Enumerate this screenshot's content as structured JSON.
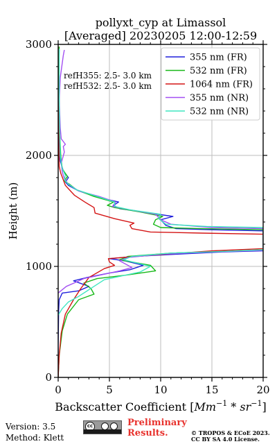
{
  "chart_data": {
    "type": "line",
    "orientation": "vertical-profile",
    "title_line1": "pollyxt_cyp at Limassol",
    "title_line2": "[Averaged] 20230205 12:00-12:59",
    "xlabel": "Backscatter Coefficient [",
    "xlabel_unit_base": "Mm",
    "xlabel_unit_sup1": "−1",
    "xlabel_unit_mid": " * ",
    "xlabel_unit_base2": "sr",
    "xlabel_unit_sup2": "−1",
    "xlabel_close": "]",
    "ylabel": "Height (m)",
    "xlim": [
      0,
      20
    ],
    "ylim": [
      0,
      3000
    ],
    "x_ticks": [
      "0",
      "5",
      "10",
      "15",
      "20"
    ],
    "y_ticks": [
      "0",
      "1000",
      "2000",
      "3000"
    ],
    "grid": true,
    "legend_position": "top-right",
    "annotations": [
      "refH355:  2.5- 3.0 km",
      "refH532:  2.5- 3.0 km"
    ],
    "series": [
      {
        "name": "355 nm (FR)",
        "color": "#1f1fdc",
        "points": [
          [
            0,
            0
          ],
          [
            0,
            300
          ],
          [
            0.05,
            600
          ],
          [
            0.1,
            700
          ],
          [
            0.4,
            760
          ],
          [
            2.0,
            780
          ],
          [
            3.0,
            820
          ],
          [
            1.5,
            870
          ],
          [
            2.8,
            900
          ],
          [
            5.0,
            940
          ],
          [
            7.0,
            970
          ],
          [
            8.3,
            1010
          ],
          [
            6.5,
            1050
          ],
          [
            5.0,
            1070
          ],
          [
            7.5,
            1090
          ],
          [
            11.5,
            1110
          ],
          [
            16.0,
            1130
          ],
          [
            20,
            1140
          ],
          [
            20,
            1320
          ],
          [
            15.0,
            1330
          ],
          [
            11.5,
            1340
          ],
          [
            10.5,
            1370
          ],
          [
            10.0,
            1420
          ],
          [
            11.2,
            1450
          ],
          [
            9.0,
            1480
          ],
          [
            6.0,
            1520
          ],
          [
            5.4,
            1550
          ],
          [
            5.9,
            1580
          ],
          [
            4.0,
            1620
          ],
          [
            2.0,
            1680
          ],
          [
            1.0,
            1730
          ],
          [
            0.7,
            1760
          ],
          [
            1.0,
            1800
          ],
          [
            0.5,
            1860
          ],
          [
            0.2,
            1950
          ],
          [
            0.15,
            2100
          ],
          [
            0.1,
            2400
          ],
          [
            0.05,
            2700
          ],
          [
            0.1,
            2950
          ]
        ]
      },
      {
        "name": "532 nm (FR)",
        "color": "#17b817",
        "points": [
          [
            0,
            0
          ],
          [
            0.1,
            200
          ],
          [
            0.4,
            420
          ],
          [
            0.9,
            570
          ],
          [
            2.0,
            700
          ],
          [
            3.5,
            750
          ],
          [
            3.2,
            800
          ],
          [
            2.5,
            850
          ],
          [
            3.8,
            890
          ],
          [
            6.5,
            920
          ],
          [
            9.5,
            960
          ],
          [
            9.0,
            1010
          ],
          [
            6.0,
            1060
          ],
          [
            6.8,
            1090
          ],
          [
            11.0,
            1120
          ],
          [
            16.0,
            1135
          ],
          [
            20,
            1150
          ],
          [
            20,
            1330
          ],
          [
            14.0,
            1340
          ],
          [
            10.0,
            1350
          ],
          [
            9.3,
            1380
          ],
          [
            9.5,
            1420
          ],
          [
            10.2,
            1450
          ],
          [
            8.0,
            1490
          ],
          [
            5.5,
            1530
          ],
          [
            4.8,
            1550
          ],
          [
            5.4,
            1580
          ],
          [
            3.5,
            1630
          ],
          [
            1.8,
            1690
          ],
          [
            1.1,
            1740
          ],
          [
            0.6,
            1770
          ],
          [
            0.9,
            1810
          ],
          [
            0.4,
            1880
          ],
          [
            0.25,
            2000
          ],
          [
            0.15,
            2200
          ],
          [
            0.1,
            2500
          ],
          [
            0.05,
            2800
          ],
          [
            0.1,
            2980
          ]
        ]
      },
      {
        "name": "1064 nm (FR)",
        "color": "#d41414",
        "points": [
          [
            0,
            0
          ],
          [
            0.1,
            200
          ],
          [
            0.3,
            400
          ],
          [
            0.7,
            570
          ],
          [
            1.5,
            700
          ],
          [
            2.2,
            800
          ],
          [
            3.0,
            900
          ],
          [
            4.5,
            980
          ],
          [
            5.5,
            1010
          ],
          [
            5.0,
            1040
          ],
          [
            4.9,
            1070
          ],
          [
            9.0,
            1100
          ],
          [
            15.0,
            1140
          ],
          [
            20,
            1160
          ],
          [
            20,
            1290
          ],
          [
            14.0,
            1300
          ],
          [
            9.0,
            1310
          ],
          [
            7.2,
            1340
          ],
          [
            7.0,
            1370
          ],
          [
            7.4,
            1390
          ],
          [
            5.5,
            1430
          ],
          [
            3.6,
            1480
          ],
          [
            3.5,
            1530
          ],
          [
            2.6,
            1580
          ],
          [
            1.6,
            1640
          ],
          [
            1.1,
            1690
          ],
          [
            0.7,
            1730
          ],
          [
            0.5,
            1780
          ],
          [
            0.25,
            1840
          ],
          [
            0.1,
            1900
          ],
          [
            0.05,
            2200
          ],
          [
            0,
            2600
          ],
          [
            0,
            2980
          ]
        ]
      },
      {
        "name": "355 nm (NR)",
        "color": "#a34ff2",
        "points": [
          [
            0,
            760
          ],
          [
            0.8,
            820
          ],
          [
            1.8,
            860
          ],
          [
            2.5,
            890
          ],
          [
            3.5,
            910
          ],
          [
            6.0,
            960
          ],
          [
            7.2,
            990
          ],
          [
            6.0,
            1050
          ],
          [
            6.8,
            1080
          ],
          [
            10.0,
            1110
          ],
          [
            15.0,
            1130
          ],
          [
            20,
            1145
          ],
          [
            20,
            1340
          ],
          [
            15.0,
            1350
          ],
          [
            11.0,
            1380
          ],
          [
            10.0,
            1420
          ],
          [
            9.5,
            1470
          ],
          [
            7.0,
            1510
          ],
          [
            5.3,
            1540
          ],
          [
            5.6,
            1580
          ],
          [
            4.0,
            1630
          ],
          [
            2.0,
            1680
          ],
          [
            1.0,
            1740
          ],
          [
            0.6,
            1790
          ],
          [
            0.4,
            1850
          ],
          [
            0.3,
            1930
          ],
          [
            0.6,
            2030
          ],
          [
            0.5,
            2080
          ],
          [
            0.7,
            2100
          ],
          [
            0.3,
            2150
          ],
          [
            0.2,
            2250
          ],
          [
            0.1,
            2500
          ],
          [
            0.2,
            2700
          ],
          [
            0.5,
            2900
          ],
          [
            0.6,
            2950
          ]
        ]
      },
      {
        "name": "532 nm (NR)",
        "color": "#3fe6c1",
        "points": [
          [
            0,
            560
          ],
          [
            0.4,
            620
          ],
          [
            1.0,
            680
          ],
          [
            2.0,
            730
          ],
          [
            3.0,
            790
          ],
          [
            4.5,
            880
          ],
          [
            8.0,
            950
          ],
          [
            9.0,
            1000
          ],
          [
            6.4,
            1060
          ],
          [
            7.2,
            1090
          ],
          [
            11.0,
            1120
          ],
          [
            16.0,
            1135
          ],
          [
            20,
            1150
          ],
          [
            20,
            1350
          ],
          [
            14.5,
            1360
          ],
          [
            10.5,
            1380
          ],
          [
            9.8,
            1430
          ],
          [
            10.0,
            1470
          ],
          [
            7.0,
            1510
          ],
          [
            5.5,
            1540
          ],
          [
            5.5,
            1580
          ],
          [
            3.8,
            1630
          ],
          [
            1.8,
            1690
          ],
          [
            1.0,
            1740
          ],
          [
            0.6,
            1780
          ],
          [
            0.7,
            1820
          ],
          [
            0.4,
            1880
          ],
          [
            0.2,
            2000
          ],
          [
            0.15,
            2200
          ],
          [
            0.1,
            2500
          ],
          [
            0.1,
            2800
          ],
          [
            0.1,
            2960
          ]
        ]
      }
    ]
  },
  "footer": {
    "version": "Version: 3.5",
    "method": "Method: Klett",
    "preliminary_line1": "Preliminary",
    "preliminary_line2": "Results.",
    "copyright_line1": "© TROPOS & ECoE 2023.",
    "copyright_line2": "CC BY SA 4.0 License.",
    "license_badge_text": "cc"
  }
}
